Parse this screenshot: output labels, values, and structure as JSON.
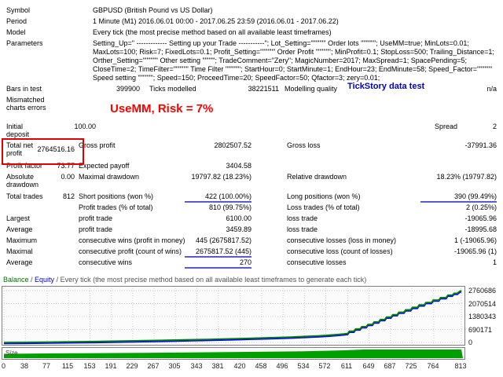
{
  "report": {
    "rows": [
      {
        "cells": [
          {
            "slot": "label",
            "text": "Symbol"
          },
          {
            "slot": "text",
            "text": "GBPUSD (British Pound vs US Dollar)"
          }
        ]
      },
      {
        "cells": [
          {
            "slot": "label",
            "text": "Period"
          },
          {
            "slot": "text",
            "text": "1 Minute (M1) 2016.06.01 00:00 - 2017.06.25 23:59 (2016.06.01 - 2017.06.22)"
          }
        ]
      },
      {
        "cells": [
          {
            "slot": "label",
            "text": "Model"
          },
          {
            "slot": "text",
            "text": "Every tick (the most precise method based on all available least timeframes)"
          }
        ]
      },
      {
        "cells": [
          {
            "slot": "label",
            "text": "Parameters"
          },
          {
            "slot": "params",
            "text": "Setting_Up=\" ------------- Setting up your Trade -----------\"; Lot_Setting=\"\"\"\"\"\" Order lots \"\"\"\"\"\"; UseMM=true; MinLots=0.01; MaxLots=100; Risk=7; FixedLots=0.1; Profit_Setting=\"\"\"\"\"\" Order Profit \"\"\"\"\"\"; MinProfit=0.1; StopLoss=500; Trailing_Distance=1; Orther_Setting=\"\"\"\"\"\" Other setting \"\"\"\"\"; TradeComment=\"Zery\"; MagicNumber=2017; MaxSpread=1; SpacePending=5; CloseTime=2; TimeFilter=\"\"\"\"\"\" Time Filter \"\"\"\"\"\"; StartHour=0; StartMinute=1; EndHour=23; EndMinute=58; Speed_Factor=\"\"\"\"\"\" Speed setting \"\"\"\"\"\"; Speed=150; ProceedTime=20; SpeedFactor=50; Qfactor=3; zery=0.01;"
          }
        ]
      },
      {
        "cells": [
          {
            "slot": "label",
            "text": "Bars in test"
          },
          {
            "slot": "value-bars",
            "text": "399900"
          },
          {
            "slot": "ticks-label",
            "text": "Ticks modelled"
          },
          {
            "slot": "ticks-value",
            "text": "38221511"
          },
          {
            "slot": "quality-label",
            "text": "Modelling quality"
          },
          {
            "slot": "right-value",
            "text": "n/a"
          }
        ]
      },
      {
        "cells": [
          {
            "slot": "label-narrow",
            "text": "Mismatched charts errors"
          }
        ]
      },
      {
        "cells": [
          {
            "slot": "label-narrow",
            "text": "Initial deposit"
          },
          {
            "slot": "value-deposit",
            "text": "100.00"
          },
          {
            "slot": "spread-label",
            "text": "Spread"
          },
          {
            "slot": "right-value",
            "text": "2"
          }
        ]
      },
      {
        "cells": [
          {
            "slot": "label-narrow",
            "text": "Total net profit"
          },
          {
            "slot": "value-main-center",
            "text": "2764516.16"
          },
          {
            "slot": "mid-label",
            "text": "Gross profit"
          },
          {
            "slot": "mid-value",
            "text": "2802507.52"
          },
          {
            "slot": "right-label",
            "text": "Gross loss"
          },
          {
            "slot": "right-value",
            "text": "-37991.36"
          }
        ]
      },
      {
        "cells": [
          {
            "slot": "label",
            "text": "Profit factor"
          },
          {
            "slot": "value-main",
            "text": "73.77"
          },
          {
            "slot": "mid-label",
            "text": "Expected payoff"
          },
          {
            "slot": "mid-value",
            "text": "3404.58"
          }
        ]
      },
      {
        "cells": [
          {
            "slot": "label-narrow",
            "text": "Absolute drawdown"
          },
          {
            "slot": "value-main",
            "text": "0.00"
          },
          {
            "slot": "mid-label",
            "text": "Maximal drawdown"
          },
          {
            "slot": "mid-value",
            "text": "19797.82 (18.23%)"
          },
          {
            "slot": "right-label",
            "text": "Relative drawdown"
          },
          {
            "slot": "right-value",
            "text": "18.23% (19797.82)"
          }
        ]
      },
      {
        "cells": [
          {
            "slot": "label",
            "text": "Total trades"
          },
          {
            "slot": "value-main",
            "text": "812"
          },
          {
            "slot": "mid-label",
            "text": "Short positions (won %)"
          },
          {
            "slot": "mid-value",
            "text": "422 (100.00%)",
            "underline": true
          },
          {
            "slot": "right-label",
            "text": "Long positions (won %)"
          },
          {
            "slot": "right-value",
            "text": "390 (99.49%)",
            "underline": true
          }
        ]
      },
      {
        "cells": [
          {
            "slot": "mid-label",
            "text": "Profit trades (% of total)"
          },
          {
            "slot": "mid-value",
            "text": "810 (99.75%)"
          },
          {
            "slot": "right-label",
            "text": "Loss trades (% of total)"
          },
          {
            "slot": "right-value",
            "text": "2 (0.25%)"
          }
        ]
      },
      {
        "cells": [
          {
            "slot": "label",
            "text": "Largest"
          },
          {
            "slot": "mid-label",
            "text": "profit trade"
          },
          {
            "slot": "mid-value",
            "text": "6100.00"
          },
          {
            "slot": "right-label",
            "text": "loss trade"
          },
          {
            "slot": "right-value",
            "text": "-19065.96"
          }
        ]
      },
      {
        "cells": [
          {
            "slot": "label",
            "text": "Average"
          },
          {
            "slot": "mid-label",
            "text": "profit trade"
          },
          {
            "slot": "mid-value",
            "text": "3459.89"
          },
          {
            "slot": "right-label",
            "text": "loss trade"
          },
          {
            "slot": "right-value",
            "text": "-18995.68"
          }
        ]
      },
      {
        "cells": [
          {
            "slot": "label",
            "text": "Maximum"
          },
          {
            "slot": "mid-label",
            "text": "consecutive wins (profit in money)"
          },
          {
            "slot": "mid-value",
            "text": "445 (2675817.52)"
          },
          {
            "slot": "right-label",
            "text": "consecutive losses (loss in money)"
          },
          {
            "slot": "right-value",
            "text": "1 (-19065.96)"
          }
        ]
      },
      {
        "cells": [
          {
            "slot": "label",
            "text": "Maximal"
          },
          {
            "slot": "mid-label",
            "text": "consecutive profit (count of wins)"
          },
          {
            "slot": "mid-value",
            "text": "2675817.52 (445)",
            "underline": true
          },
          {
            "slot": "right-label",
            "text": "consecutive loss (count of losses)"
          },
          {
            "slot": "right-value",
            "text": "-19065.96 (1)"
          }
        ]
      },
      {
        "cells": [
          {
            "slot": "label",
            "text": "Average"
          },
          {
            "slot": "mid-label",
            "text": "consecutive wins"
          },
          {
            "slot": "mid-value",
            "text": "270",
            "underline": true
          },
          {
            "slot": "right-label",
            "text": "consecutive losses"
          },
          {
            "slot": "right-value",
            "text": "1"
          }
        ]
      }
    ]
  },
  "annotations": {
    "risk_note": "UseMM, Risk = 7%",
    "tickstory_note": "TickStory data test"
  },
  "chart_data": {
    "type": "line",
    "header": {
      "balance": "Balance",
      "separator": " / ",
      "equity": "Equity",
      "method": " Every tick (the most precise method based on all available least timeframes to generate each tick)"
    },
    "size_label": "Size",
    "series": [
      {
        "name": "Balance",
        "color": "#008000"
      },
      {
        "name": "Equity",
        "color": "#0000ff"
      }
    ],
    "size_color": "#00a000",
    "xlim": [
      0,
      813
    ],
    "ylim": [
      0,
      2760686
    ],
    "y_ticks": [
      2760686,
      2070514,
      1380343,
      690171,
      0
    ],
    "x_ticks": [
      0,
      38,
      77,
      115,
      153,
      191,
      229,
      267,
      305,
      343,
      381,
      420,
      458,
      496,
      534,
      572,
      611,
      649,
      687,
      725,
      764,
      813
    ],
    "points": [
      [
        0,
        2000
      ],
      [
        40,
        10000
      ],
      [
        80,
        22000
      ],
      [
        120,
        36000
      ],
      [
        160,
        52000
      ],
      [
        200,
        70000
      ],
      [
        240,
        90000
      ],
      [
        280,
        112000
      ],
      [
        320,
        136000
      ],
      [
        360,
        162000
      ],
      [
        400,
        192000
      ],
      [
        440,
        224000
      ],
      [
        480,
        260000
      ],
      [
        510,
        290000
      ],
      [
        535,
        320000
      ],
      [
        558,
        352000
      ],
      [
        578,
        390000
      ],
      [
        594,
        425000
      ],
      [
        604,
        455000
      ],
      [
        611,
        480000
      ],
      [
        614,
        600000
      ],
      [
        622,
        600000
      ],
      [
        625,
        720000
      ],
      [
        633,
        720000
      ],
      [
        636,
        840000
      ],
      [
        644,
        840000
      ],
      [
        647,
        960000
      ],
      [
        655,
        960000
      ],
      [
        658,
        1090000
      ],
      [
        666,
        1090000
      ],
      [
        669,
        1220000
      ],
      [
        677,
        1220000
      ],
      [
        680,
        1350000
      ],
      [
        688,
        1350000
      ],
      [
        691,
        1480000
      ],
      [
        699,
        1480000
      ],
      [
        702,
        1610000
      ],
      [
        711,
        1610000
      ],
      [
        714,
        1740000
      ],
      [
        723,
        1740000
      ],
      [
        726,
        1870000
      ],
      [
        735,
        1870000
      ],
      [
        738,
        2000000
      ],
      [
        747,
        2000000
      ],
      [
        750,
        2130000
      ],
      [
        760,
        2130000
      ],
      [
        763,
        2260000
      ],
      [
        773,
        2260000
      ],
      [
        776,
        2390000
      ],
      [
        786,
        2390000
      ],
      [
        789,
        2520000
      ],
      [
        797,
        2520000
      ],
      [
        800,
        2620000
      ],
      [
        806,
        2620000
      ],
      [
        809,
        2700000
      ],
      [
        813,
        2764516
      ]
    ],
    "size_profile": [
      [
        0,
        0.5
      ],
      [
        100,
        0.55
      ],
      [
        250,
        0.62
      ],
      [
        400,
        0.7
      ],
      [
        520,
        0.78
      ],
      [
        600,
        0.9
      ],
      [
        640,
        1.0
      ],
      [
        813,
        1.0
      ]
    ]
  }
}
